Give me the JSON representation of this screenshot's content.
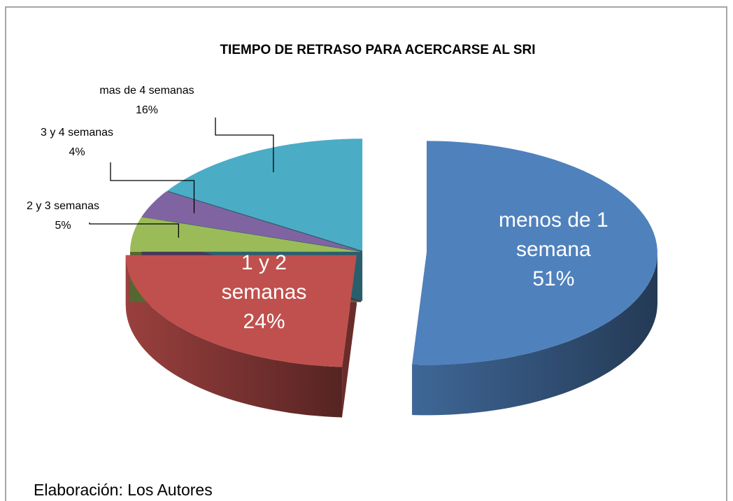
{
  "chart_data": {
    "type": "pie3d",
    "title": "TIEMPO DE RETRASO PARA ACERCARSE AL SRI",
    "categories": [
      "menos de 1 semana",
      "1 y 2 semanas",
      "2 y 3 semanas",
      "3 y 4 semanas",
      "mas de 4 semanas"
    ],
    "values": [
      51,
      24,
      5,
      4,
      16
    ],
    "value_labels": [
      "51%",
      "24%",
      "5%",
      "4%",
      "16%"
    ],
    "colors": [
      "#4f81bd",
      "#c0504d",
      "#9bbb59",
      "#8064a2",
      "#4bacc6"
    ],
    "note": "Elaboración: Los Autores"
  }
}
